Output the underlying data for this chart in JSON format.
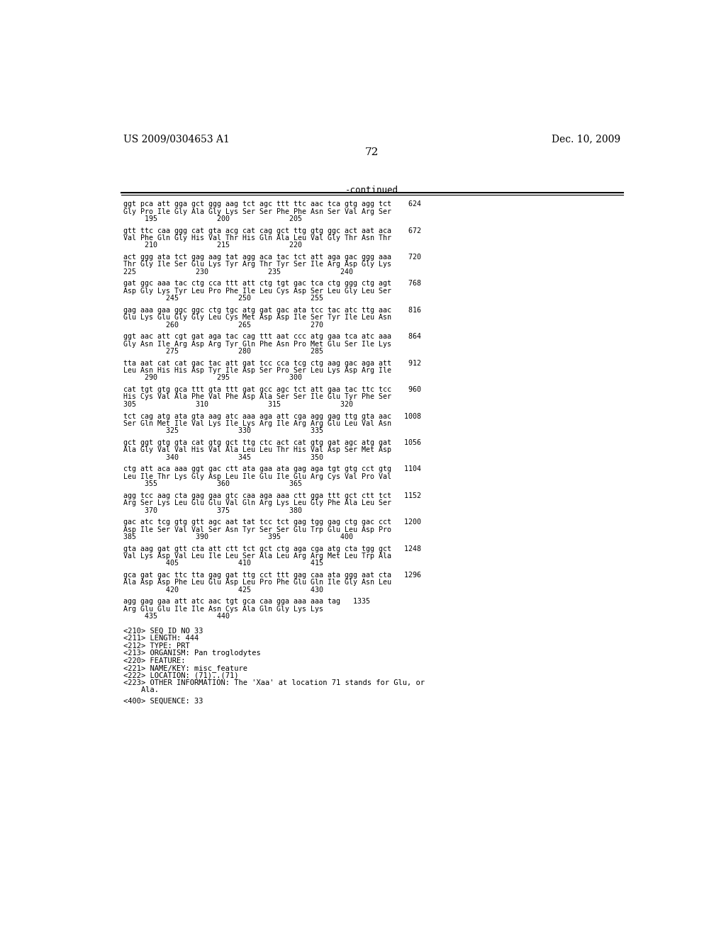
{
  "header_left": "US 2009/0304653 A1",
  "header_right": "Dec. 10, 2009",
  "page_number": "72",
  "continued_label": "-continued",
  "background_color": "#ffffff",
  "text_color": "#000000",
  "content_lines": [
    "ggt pca att gga gct ggg aag tct agc ttt ttc aac tca gtg agg tct    624",
    "Gly Pro Ile Gly Ala Gly Lys Ser Ser Phe Phe Asn Ser Val Arg Ser",
    "     195              200              205",
    "",
    "gtt ttc caa ggg cat gta acg cat cag gct ttg gtg ggc act aat aca    672",
    "Val Phe Gln Gly His Val Thr His Gln Ala Leu Val Gly Thr Asn Thr",
    "     210              215              220",
    "",
    "act ggg ata tct gag aag tat agg aca tac tct att aga gac ggg aaa    720",
    "Thr Gly Ile Ser Glu Lys Tyr Arg Thr Tyr Ser Ile Arg Asp Gly Lys",
    "225              230              235              240",
    "",
    "gat ggc aaa tac ctg cca ttt att ctg tgt gac tca ctg ggg ctg agt    768",
    "Asp Gly Lys Tyr Leu Pro Phe Ile Leu Cys Asp Ser Leu Gly Leu Ser",
    "          245              250              255",
    "",
    "gag aaa gaa ggc ggc ctg tgc atg gat gac ata tcc tac atc ttg aac    816",
    "Glu Lys Glu Gly Gly Leu Cys Met Asp Asp Ile Ser Tyr Ile Leu Asn",
    "          260              265              270",
    "",
    "ggt aac att cgt gat aga tac cag ttt aat ccc atg gaa tca atc aaa    864",
    "Gly Asn Ile Arg Asp Arg Tyr Gln Phe Asn Pro Met Glu Ser Ile Lys",
    "          275              280              285",
    "",
    "tta aat cat cat gac tac att gat tcc cca tcg ctg aag gac aga att    912",
    "Leu Asn His His Asp Tyr Ile Asp Ser Pro Ser Leu Lys Asp Arg Ile",
    "     290              295              300",
    "",
    "cat tgt gtg gca ttt gta ttt gat gcc agc tct att gaa tac ttc tcc    960",
    "His Cys Val Ala Phe Val Phe Asp Ala Ser Ser Ile Glu Tyr Phe Ser",
    "305              310              315              320",
    "",
    "tct cag atg ata gta aag atc aaa aga att cga agg gag ttg gta aac   1008",
    "Ser Gln Met Ile Val Lys Ile Lys Arg Ile Arg Arg Glu Leu Val Asn",
    "          325              330              335",
    "",
    "gct ggt gtg gta cat gtg gct ttg ctc act cat gtg gat agc atg gat   1056",
    "Ala Gly Val Val His Val Ala Leu Leu Thr His Val Asp Ser Met Asp",
    "          340              345              350",
    "",
    "ctg att aca aaa ggt gac ctt ata gaa ata gag aga tgt gtg cct gtg   1104",
    "Leu Ile Thr Lys Gly Asp Leu Ile Glu Ile Glu Arg Cys Val Pro Val",
    "     355              360              365",
    "",
    "agg tcc aag cta gag gaa gtc caa aga aaa ctt gga ttt gct ctt tct   1152",
    "Arg Ser Lys Leu Glu Glu Val Gln Arg Lys Leu Gly Phe Ala Leu Ser",
    "     370              375              380",
    "",
    "gac atc tcg gtg gtt agc aat tat tcc tct gag tgg gag ctg gac cct   1200",
    "Asp Ile Ser Val Val Ser Asn Tyr Ser Ser Glu Trp Glu Leu Asp Pro",
    "385              390              395              400",
    "",
    "gta aag gat gtt cta att ctt tct gct ctg aga cga atg cta tgg gct   1248",
    "Val Lys Asp Val Leu Ile Leu Ser Ala Leu Arg Arg Met Leu Trp Ala",
    "          405              410              415",
    "",
    "gca gat gac ttc tta gag gat ttg cct ttt gag caa ata ggg aat cta   1296",
    "Ala Asp Asp Phe Leu Glu Asp Leu Pro Phe Glu Gln Ile Gly Asn Leu",
    "          420              425              430",
    "",
    "agg gag gaa att atc aac tgt gca caa gga aaa aaa tag   1335",
    "Arg Glu Glu Ile Ile Asn Cys Ala Gln Gly Lys Lys",
    "     435              440"
  ],
  "footer_lines": [
    "",
    "<210> SEQ ID NO 33",
    "<211> LENGTH: 444",
    "<212> TYPE: PRT",
    "<213> ORGANISM: Pan troglodytes",
    "<220> FEATURE:",
    "<221> NAME/KEY: misc_feature",
    "<222> LOCATION: (71)..(71)",
    "<223> OTHER INFORMATION: The 'Xaa' at location 71 stands for Glu, or",
    "    Ala.",
    "",
    "<400> SEQUENCE: 33"
  ]
}
